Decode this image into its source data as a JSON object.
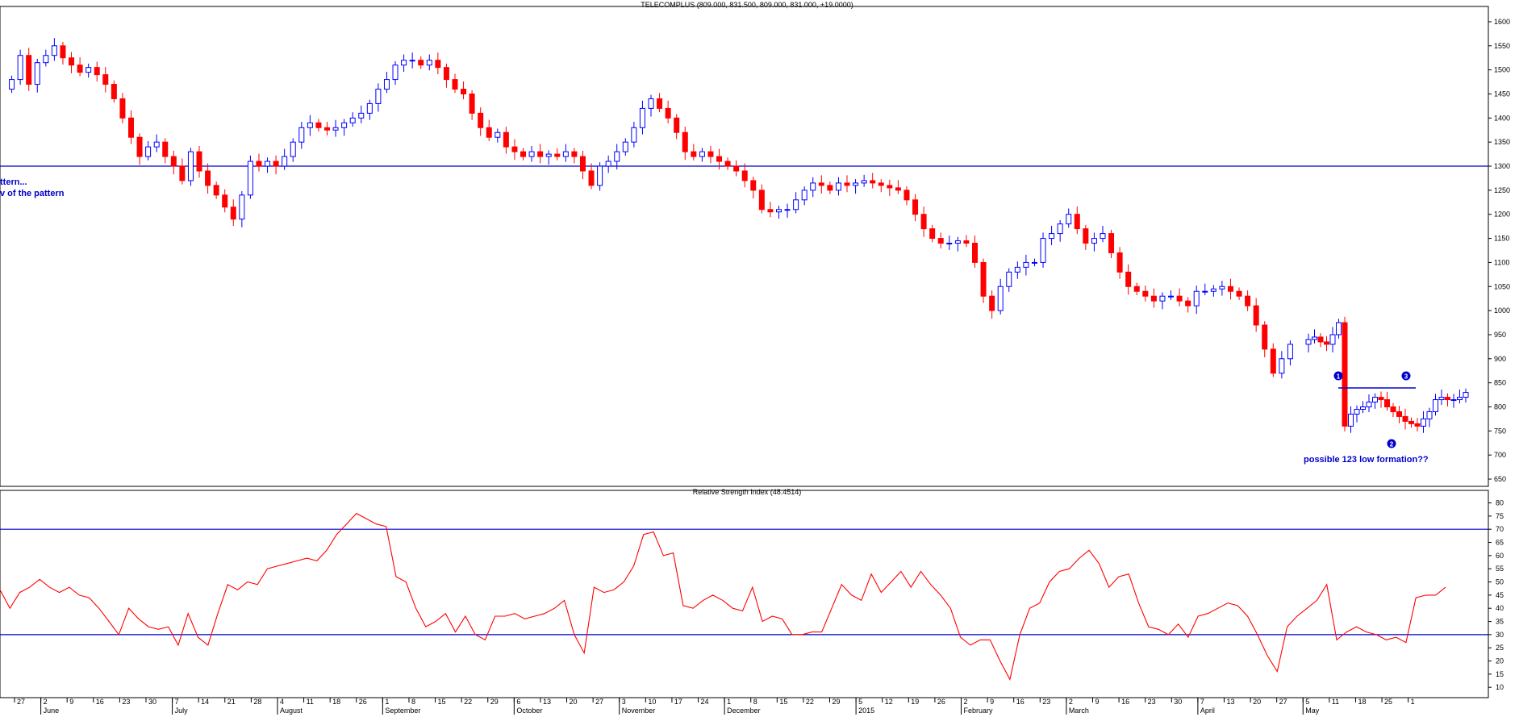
{
  "chart_data": [
    {
      "type": "candlestick",
      "title": "TELECOMPLUS (809.000, 831.500, 809.000, 831.000, +19.0000)",
      "ylim": [
        640,
        1620
      ],
      "yticks": [
        650,
        700,
        750,
        800,
        850,
        900,
        950,
        1000,
        1050,
        1100,
        1150,
        1200,
        1250,
        1300,
        1350,
        1400,
        1450,
        1500,
        1550,
        1600
      ],
      "hline": 1300,
      "colors": {
        "up": "#0000ff",
        "down": "#ff0000",
        "line": "#0000cc"
      },
      "annotations": {
        "left_1": "ttern...",
        "left_2": "v of the pattern",
        "formation": "possible 123 low formation??",
        "point1": "1",
        "point2": "2",
        "point3": "3"
      },
      "resistance_line": 848,
      "series_close": [
        1480,
        1530,
        1470,
        1515,
        1530,
        1550,
        1525,
        1510,
        1495,
        1505,
        1490,
        1470,
        1440,
        1400,
        1360,
        1320,
        1340,
        1350,
        1320,
        1300,
        1270,
        1330,
        1290,
        1260,
        1240,
        1215,
        1190,
        1240,
        1310,
        1300,
        1310,
        1300,
        1320,
        1350,
        1380,
        1390,
        1380,
        1375,
        1380,
        1390,
        1400,
        1410,
        1430,
        1460,
        1480,
        1510,
        1520,
        1520,
        1510,
        1520,
        1505,
        1480,
        1460,
        1450,
        1410,
        1380,
        1360,
        1370,
        1340,
        1330,
        1320,
        1330,
        1320,
        1325,
        1320,
        1330,
        1320,
        1290,
        1260,
        1300,
        1310,
        1330,
        1350,
        1380,
        1420,
        1440,
        1420,
        1400,
        1370,
        1330,
        1320,
        1330,
        1320,
        1310,
        1300,
        1290,
        1270,
        1250,
        1210,
        1205,
        1210,
        1210,
        1230,
        1250,
        1265,
        1260,
        1250,
        1265,
        1260,
        1265,
        1270,
        1265,
        1260,
        1255,
        1250,
        1230,
        1200,
        1170,
        1150,
        1140,
        1140,
        1145,
        1140,
        1100,
        1030,
        1000,
        1050,
        1080,
        1090,
        1100,
        1100,
        1150,
        1160,
        1180,
        1200,
        1170,
        1140,
        1150,
        1160,
        1120,
        1080,
        1050,
        1040,
        1030,
        1020,
        1030,
        1030,
        1020,
        1010,
        1040,
        1040,
        1045,
        1050,
        1040,
        1030,
        1010,
        970,
        920,
        870,
        900,
        930,
        940,
        945,
        935,
        930,
        950,
        975,
        760,
        785,
        795,
        800,
        810,
        820,
        815,
        800,
        790,
        780,
        770,
        765,
        760,
        775,
        790,
        815,
        820,
        815,
        815,
        820,
        830
      ]
    },
    {
      "type": "line",
      "title": "Relative Strength Index (48.4514)",
      "ylim": [
        7,
        82
      ],
      "yticks": [
        10,
        15,
        20,
        25,
        30,
        35,
        40,
        45,
        50,
        55,
        60,
        65,
        70,
        75,
        80
      ],
      "hlines": [
        70,
        30
      ],
      "colors": {
        "line": "#ff0000",
        "hline": "#0000cc"
      },
      "series": [
        {
          "name": "RSI",
          "values": [
            47,
            40,
            46,
            48,
            51,
            48,
            46,
            48,
            45,
            44,
            40,
            35,
            30,
            40,
            36,
            33,
            32,
            33,
            26,
            38,
            29,
            26,
            38,
            49,
            47,
            50,
            49,
            55,
            56,
            57,
            58,
            59,
            58,
            62,
            68,
            72,
            76,
            74,
            72,
            71,
            52,
            50,
            40,
            33,
            35,
            38,
            31,
            37,
            30,
            28,
            37,
            37,
            38,
            36,
            37,
            38,
            40,
            43,
            30,
            23,
            48,
            46,
            47,
            50,
            56,
            68,
            69,
            60,
            61,
            41,
            40,
            43,
            45,
            43,
            40,
            39,
            48,
            35,
            37,
            36,
            30,
            30,
            31,
            31,
            40,
            49,
            45,
            43,
            53,
            46,
            50,
            54,
            48,
            54,
            49,
            45,
            40,
            29,
            26,
            28,
            28,
            20,
            13,
            30,
            40,
            42,
            50,
            54,
            55,
            59,
            62,
            57,
            48,
            52,
            53,
            42,
            33,
            32,
            30,
            34,
            29,
            37,
            38,
            40,
            42,
            41,
            37,
            30,
            22,
            16,
            33,
            37,
            40,
            43,
            49,
            28,
            31,
            33,
            31,
            30,
            28,
            29,
            27,
            44,
            45,
            45,
            48
          ]
        }
      ]
    }
  ],
  "x_axis": {
    "day_labels": [
      "27",
      "2",
      "9",
      "16",
      "23",
      "30",
      "7",
      "14",
      "21",
      "28",
      "4",
      "11",
      "18",
      "26",
      "1",
      "8",
      "15",
      "22",
      "29",
      "6",
      "13",
      "20",
      "27",
      "3",
      "10",
      "17",
      "24",
      "1",
      "8",
      "15",
      "22",
      "29",
      "5",
      "12",
      "19",
      "26",
      "2",
      "9",
      "16",
      "23",
      "2",
      "9",
      "16",
      "23",
      "30",
      "7",
      "13",
      "20",
      "27",
      "5",
      "11",
      "18",
      "25",
      "1"
    ],
    "month_labels": [
      "June",
      "July",
      "August",
      "September",
      "October",
      "November",
      "December",
      "2015",
      "February",
      "March",
      "April",
      "May"
    ]
  }
}
